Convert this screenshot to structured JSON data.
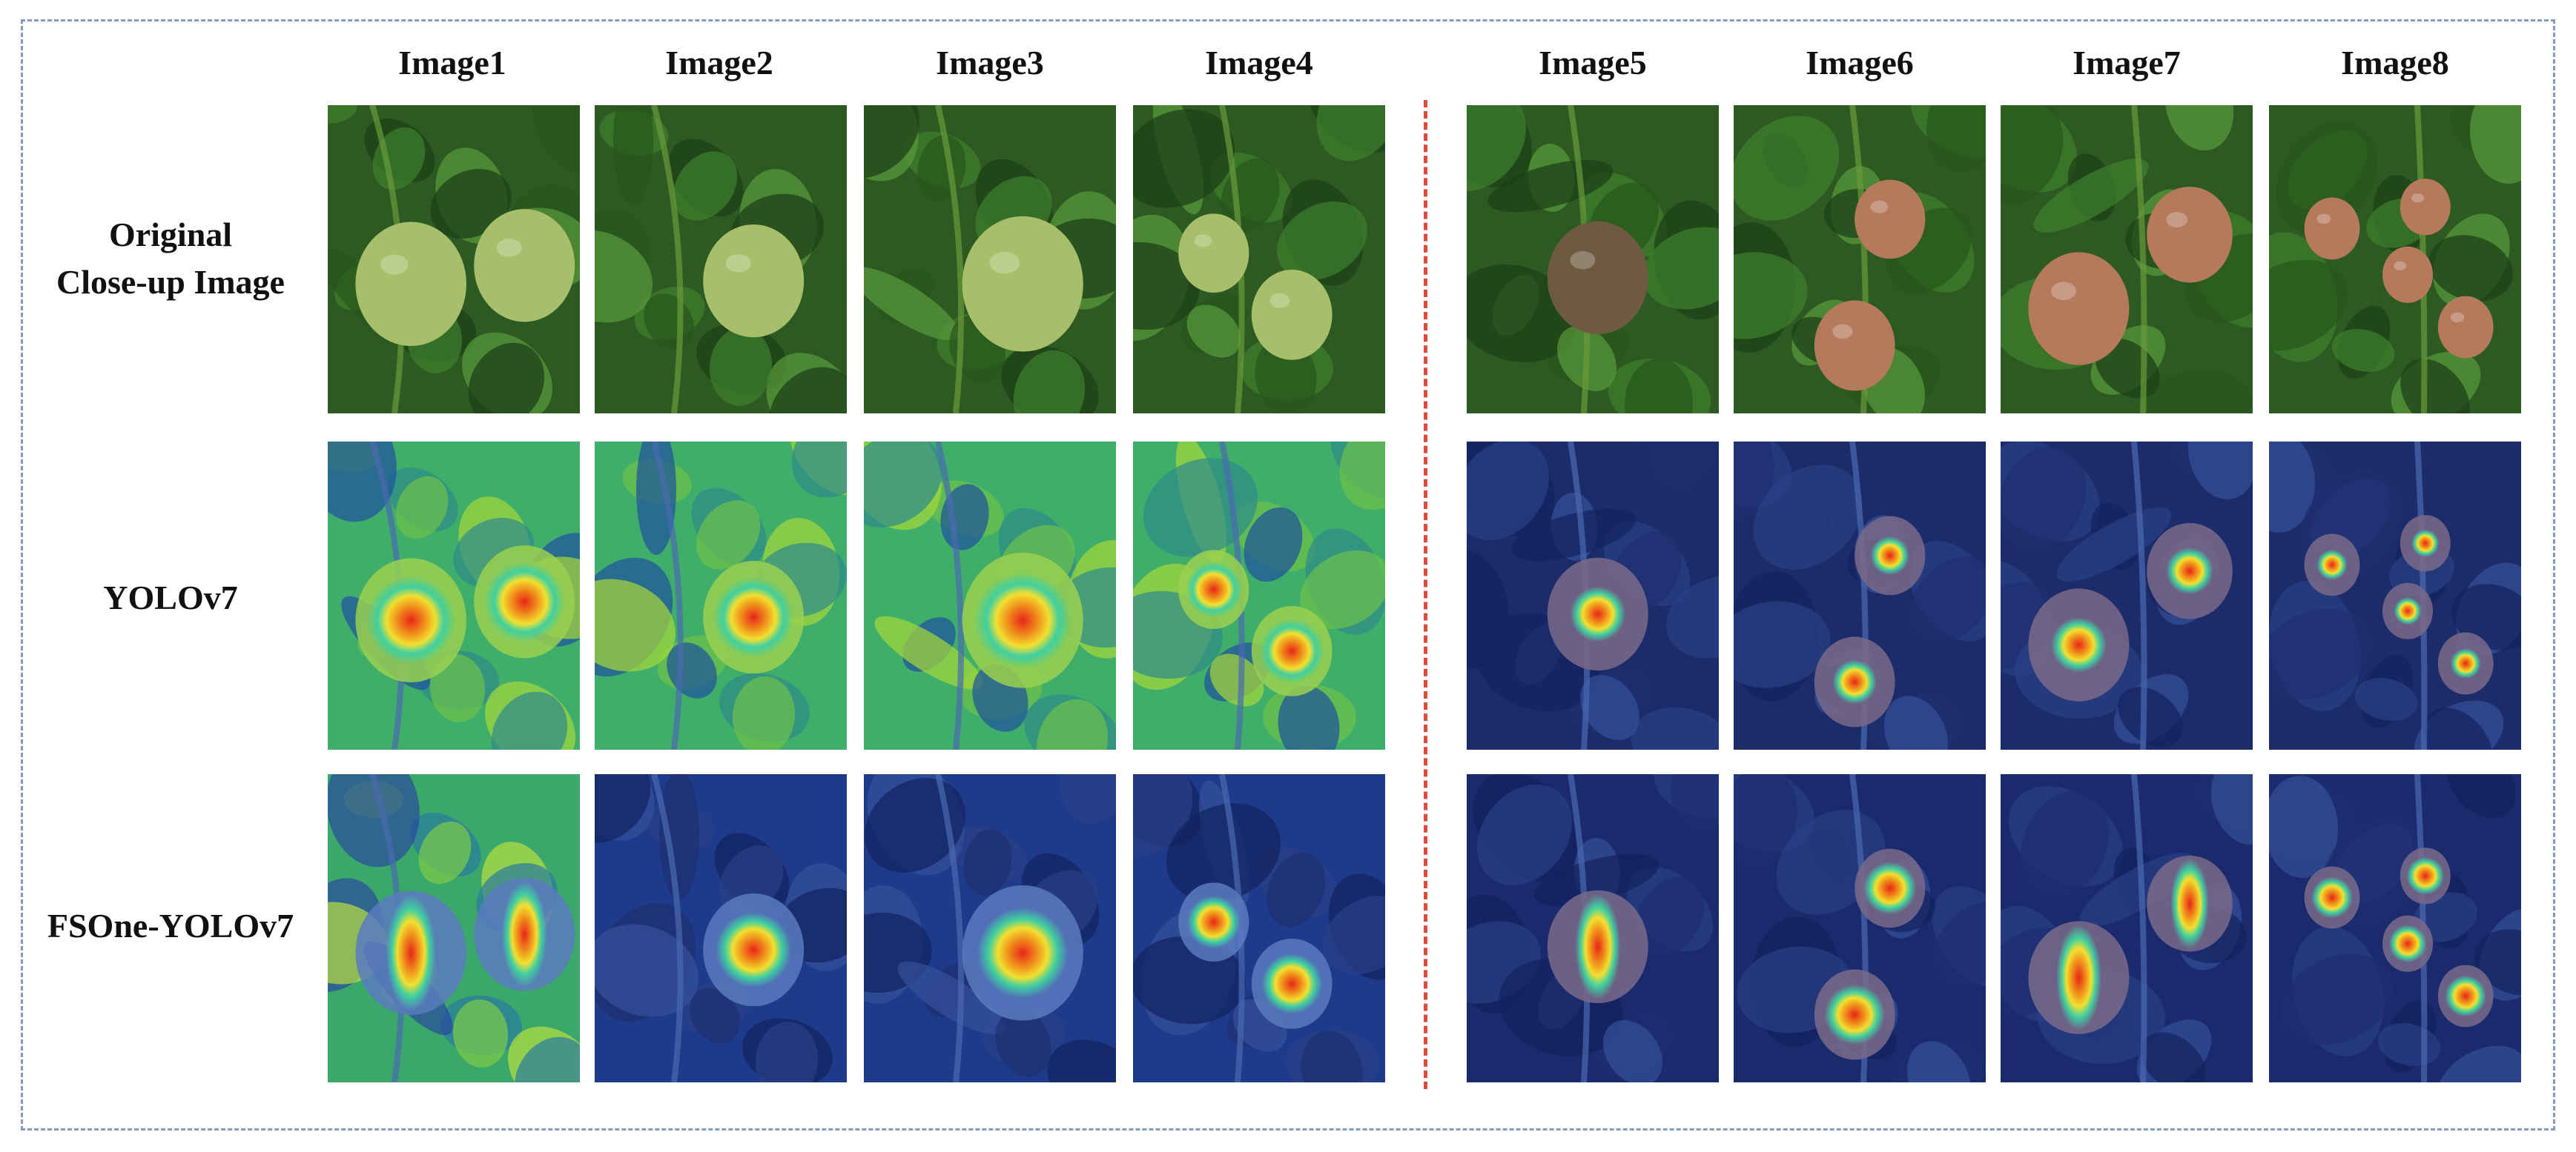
{
  "columns": [
    "Image1",
    "Image2",
    "Image3",
    "Image4",
    "Image5",
    "Image6",
    "Image7",
    "Image8"
  ],
  "rows": [
    {
      "label_line1": "Original",
      "label_line2": "Close-up Image"
    },
    {
      "label_line1": "YOLOv7",
      "label_line2": ""
    },
    {
      "label_line1": "FSOne-YOLOv7",
      "label_line2": ""
    }
  ],
  "colors": {
    "border": "#8a9bb8",
    "divider": "#e04a3c",
    "leaf_dark": "#1f4a1a",
    "leaf_mid": "#3d7a2a",
    "fruit_green": "#9fb86a",
    "fruit_ripe": "#b8856a",
    "heat_blue": "#1a2f8a",
    "heat_red": "#e8251a"
  }
}
